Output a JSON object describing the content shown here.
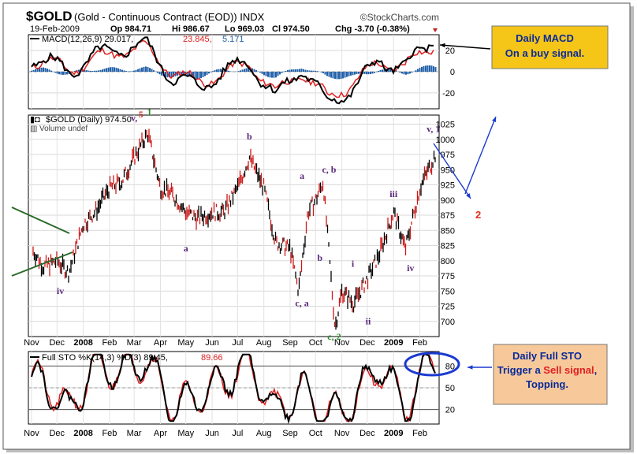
{
  "header": {
    "symbol": "$GOLD",
    "description": "(Gold - Continuous Contract (EOD)) INDX",
    "watermark": "©StockCharts.com",
    "date": "19-Feb-2009",
    "open": "Op 984.71",
    "high": "Hi 986.67",
    "low": "Lo 969.03",
    "close": "Cl 974.50",
    "change": "Chg -3.70 (-0.38%)"
  },
  "macd_panel": {
    "legend_label": "MACD(12,26,9) 29.017,",
    "legend_signal": "23.845,",
    "legend_hist": "5.171"
  },
  "price_panel": {
    "legend_label": "$GOLD (Daily) 974.50",
    "volume_label": "Volume undef"
  },
  "sto_panel": {
    "legend_label": "Full STO %K(14,3) %D(3) 89.45,",
    "legend_d": "89.66"
  },
  "x_axis_labels": [
    "Nov",
    "Dec",
    "2008",
    "Feb",
    "Mar",
    "Apr",
    "May",
    "Jun",
    "Jul",
    "Aug",
    "Sep",
    "Oct",
    "Nov",
    "Dec",
    "2009",
    "Feb"
  ],
  "callouts": {
    "macd_line1": "Daily MACD",
    "macd_line2": "On a buy signal.",
    "sto_line1": "Daily Full STO",
    "sto_line2a": "Trigger a ",
    "sto_line2b": "Sell signal",
    "sto_line2c": ",",
    "sto_line3": "Topping."
  },
  "projection_label": "2",
  "wave_labels": [
    {
      "text": "iv",
      "color": "#5a2a7a",
      "date": "2007-12-05",
      "price": 745
    },
    {
      "text": "v,",
      "color": "#5a2a7a",
      "date": "2008-03-01",
      "price": 1030
    },
    {
      "text": "5",
      "color": "#d03020",
      "date": "2008-03-09",
      "price": 1036
    },
    {
      "text": "1",
      "color": "#2a8a2a",
      "date": "2008-03-19",
      "price": 1040
    },
    {
      "text": "a",
      "color": "#5a2a7a",
      "date": "2008-05-01",
      "price": 815
    },
    {
      "text": "b",
      "color": "#5a2a7a",
      "date": "2008-07-15",
      "price": 1000
    },
    {
      "text": "a",
      "color": "#5a2a7a",
      "date": "2008-09-15",
      "price": 935
    },
    {
      "text": "c, a",
      "color": "#5a2a7a",
      "date": "2008-09-15",
      "price": 725
    },
    {
      "text": "b",
      "color": "#5a2a7a",
      "date": "2008-10-06",
      "price": 800
    },
    {
      "text": "c, b",
      "color": "#5a2a7a",
      "date": "2008-10-17",
      "price": 945
    },
    {
      "text": "i",
      "color": "#5a2a7a",
      "date": "2008-11-14",
      "price": 790
    },
    {
      "text": "c, 2",
      "color": "#2a8a2a",
      "date": "2008-10-23",
      "price": 670
    },
    {
      "text": "ii",
      "color": "#5a2a7a",
      "date": "2008-12-02",
      "price": 695
    },
    {
      "text": "iii",
      "color": "#5a2a7a",
      "date": "2009-01-01",
      "price": 905
    },
    {
      "text": "iv",
      "color": "#5a2a7a",
      "date": "2009-01-21",
      "price": 783
    },
    {
      "text": "v, 1",
      "color": "#5a2a7a",
      "date": "2009-02-17",
      "price": 1012
    }
  ],
  "chart_data": [
    {
      "type": "line",
      "name": "MACD",
      "x": [
        "2007-11",
        "2007-12",
        "2008-01",
        "2008-02",
        "2008-03",
        "2008-04",
        "2008-05",
        "2008-06",
        "2008-07",
        "2008-08",
        "2008-09",
        "2008-10",
        "2008-11",
        "2008-12",
        "2009-01",
        "2009-02"
      ],
      "series": [
        {
          "name": "MACD(12,26,9)",
          "values": [
            12,
            0,
            15,
            22,
            25,
            -5,
            -15,
            0,
            10,
            -25,
            5,
            -30,
            -15,
            10,
            5,
            29.017
          ],
          "color": "#000000"
        },
        {
          "name": "Signal",
          "values": [
            10,
            2,
            12,
            20,
            22,
            0,
            -10,
            -2,
            8,
            -20,
            0,
            -25,
            -10,
            8,
            6,
            23.845
          ],
          "color": "#e02020"
        },
        {
          "name": "Histogram",
          "values": [
            2,
            -2,
            3,
            2,
            3,
            -5,
            -5,
            2,
            2,
            -5,
            5,
            -5,
            -5,
            2,
            -1,
            5.171
          ],
          "color": "#1f5fa8"
        }
      ],
      "yticks": [
        -20,
        0,
        20
      ],
      "ylim": [
        -35,
        35
      ]
    },
    {
      "type": "line",
      "title": "$GOLD (Daily) 974.50",
      "x": [
        "2007-11-01",
        "2007-11-15",
        "2007-12-01",
        "2007-12-15",
        "2008-01-01",
        "2008-01-15",
        "2008-02-01",
        "2008-02-15",
        "2008-03-01",
        "2008-03-17",
        "2008-04-01",
        "2008-04-15",
        "2008-05-01",
        "2008-05-15",
        "2008-06-01",
        "2008-06-15",
        "2008-07-01",
        "2008-07-15",
        "2008-08-01",
        "2008-08-15",
        "2008-09-01",
        "2008-09-11",
        "2008-09-22",
        "2008-10-01",
        "2008-10-10",
        "2008-10-24",
        "2008-11-01",
        "2008-11-15",
        "2008-12-01",
        "2008-12-15",
        "2009-01-01",
        "2009-01-15",
        "2009-02-01",
        "2009-02-19"
      ],
      "series": [
        {
          "name": "$GOLD",
          "values": [
            820,
            790,
            800,
            780,
            860,
            880,
            920,
            930,
            970,
            1010,
            920,
            910,
            880,
            870,
            880,
            880,
            920,
            970,
            920,
            830,
            820,
            750,
            880,
            900,
            930,
            690,
            750,
            730,
            770,
            810,
            880,
            820,
            920,
            974.5
          ]
        }
      ],
      "yticks": [
        700,
        725,
        750,
        775,
        800,
        825,
        850,
        875,
        900,
        925,
        950,
        975,
        1000,
        1025
      ],
      "ylim": [
        675,
        1040
      ]
    },
    {
      "type": "line",
      "title": "Full STO %K(14,3) %D(3)",
      "x": [
        "2007-11",
        "2007-12",
        "2008-01",
        "2008-02",
        "2008-03",
        "2008-04",
        "2008-05",
        "2008-06",
        "2008-07",
        "2008-08",
        "2008-09",
        "2008-10",
        "2008-11",
        "2008-12",
        "2009-01",
        "2009-02"
      ],
      "series": [
        {
          "name": "%K(14,3)",
          "values": [
            60,
            15,
            85,
            70,
            90,
            20,
            40,
            60,
            85,
            15,
            50,
            10,
            30,
            85,
            20,
            89.45
          ],
          "color": "#000000"
        },
        {
          "name": "%D(3)",
          "values": [
            62,
            18,
            80,
            72,
            88,
            25,
            38,
            58,
            80,
            18,
            48,
            12,
            28,
            80,
            25,
            89.66
          ],
          "color": "#e02020"
        }
      ],
      "yticks": [
        20,
        50,
        80
      ],
      "ylim": [
        0,
        100
      ]
    }
  ]
}
